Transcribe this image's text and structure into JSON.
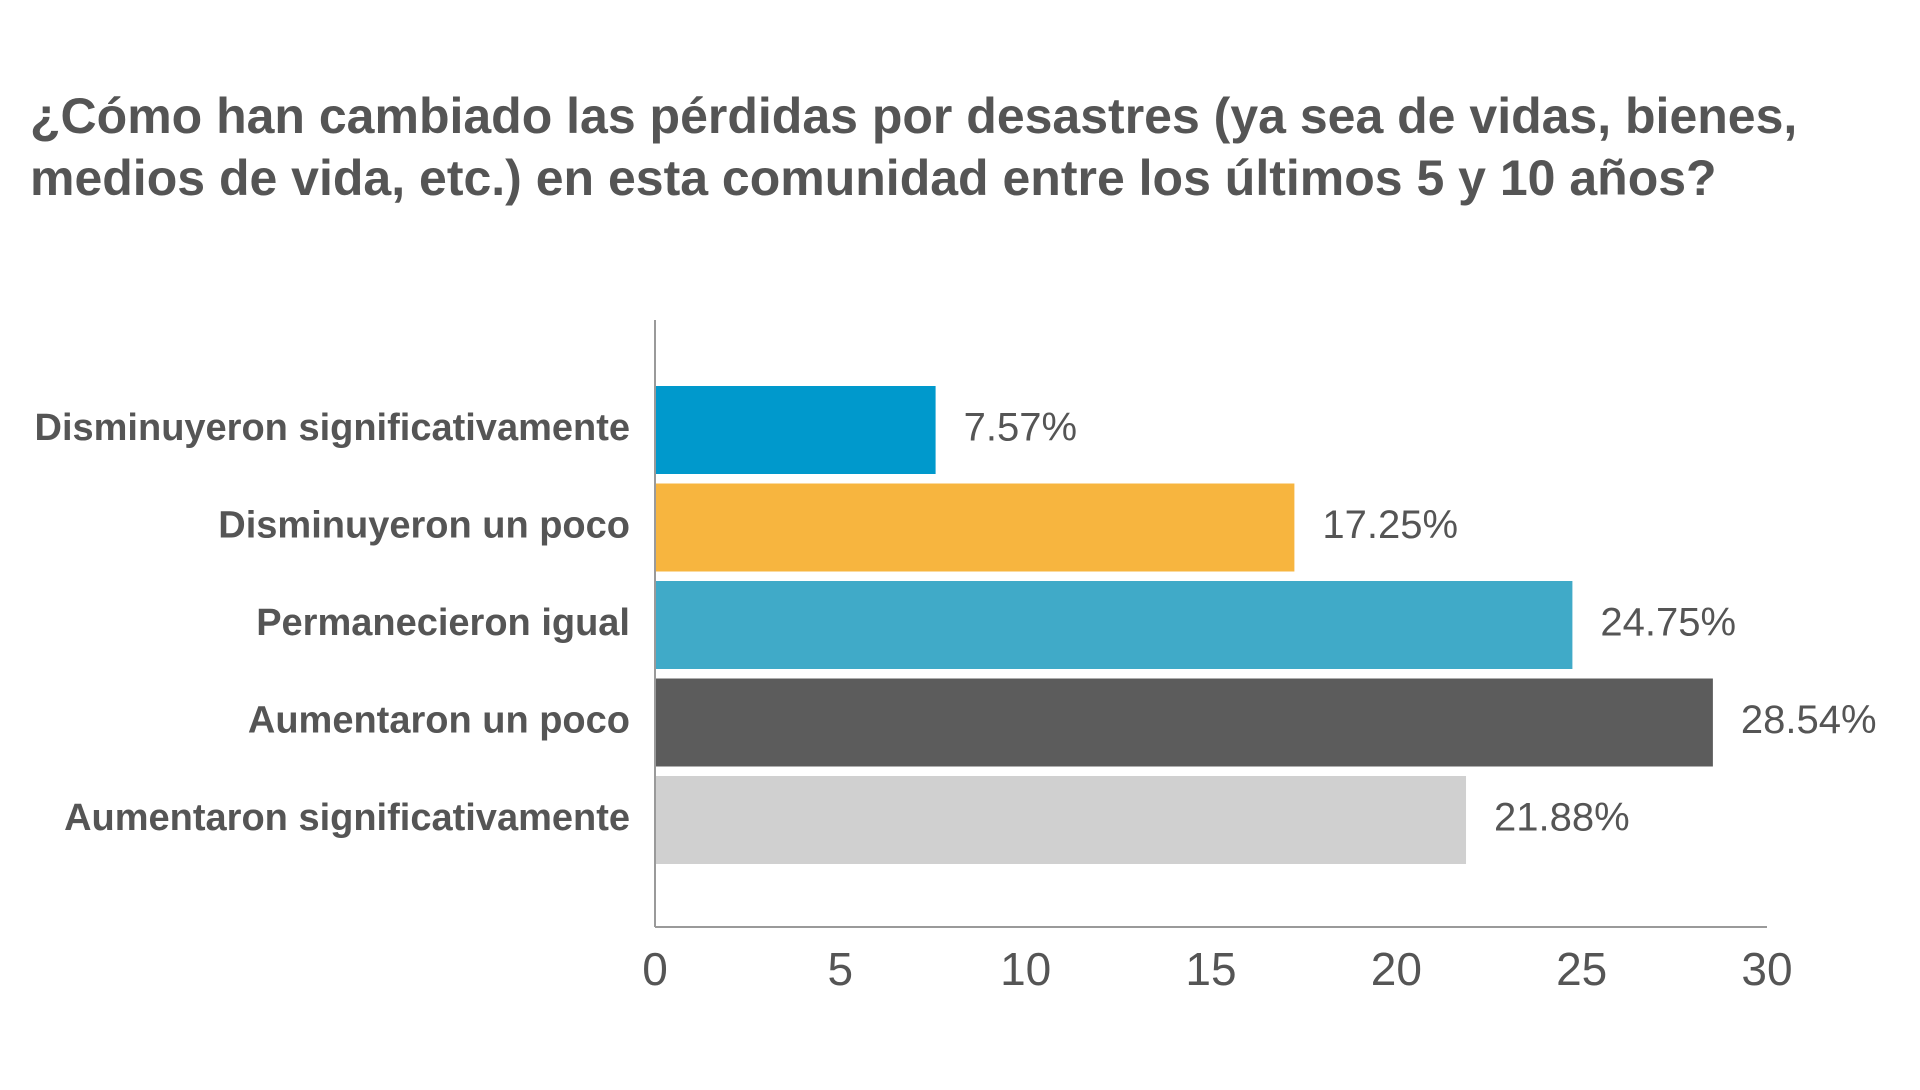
{
  "title_lines": [
    "¿Cómo han cambiado las pérdidas por desastres (ya sea de vidas, bienes,",
    "medios de vida, etc.) en esta comunidad entre los últimos 5 y 10 años?"
  ],
  "chart_data": {
    "type": "bar",
    "orientation": "horizontal",
    "title": "¿Cómo han cambiado las pérdidas por desastres (ya sea de vidas, bienes, medios de vida, etc.) en esta comunidad entre los últimos 5 y 10 años?",
    "categories": [
      "Disminuyeron significativamente",
      "Disminuyeron un poco",
      "Permanecieron igual",
      "Aumentaron un poco",
      "Aumentaron significativamente"
    ],
    "values": [
      7.57,
      17.25,
      24.75,
      28.54,
      21.88
    ],
    "value_labels": [
      "7.57%",
      "17.25%",
      "24.75%",
      "28.54%",
      "21.88%"
    ],
    "colors": [
      "#0099CC",
      "#F7B53F",
      "#40AAC8",
      "#5C5C5C",
      "#D0D0D0"
    ],
    "xlim": [
      0,
      30
    ],
    "xticks": [
      0,
      5,
      10,
      15,
      20,
      25,
      30
    ],
    "xtick_labels": [
      "0",
      "5",
      "10",
      "15",
      "20",
      "25",
      "30"
    ],
    "xlabel": "",
    "ylabel": "",
    "grid": false,
    "legend": "none"
  }
}
